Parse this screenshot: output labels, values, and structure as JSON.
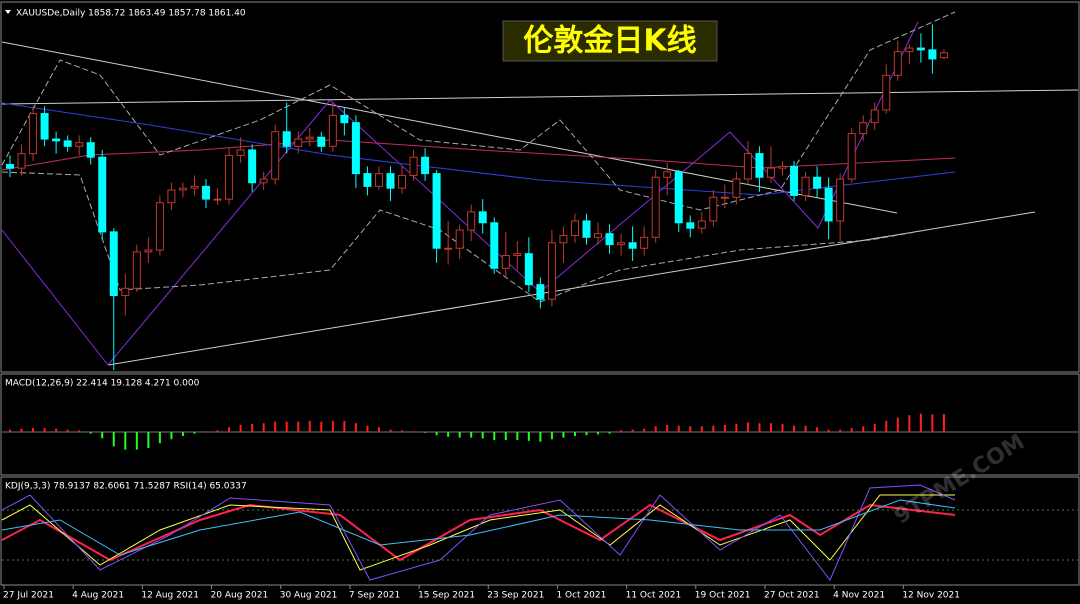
{
  "chart_data": [
    {
      "type": "candlestick",
      "title": "伦敦金日K线",
      "subtitle": "XAUUSDe,Daily  1858.72 1863.49 1857.78 1861.40",
      "up_color": "#c0392b",
      "down_color": "#00ffff",
      "categories": [
        "27 Jul 2021",
        null,
        null,
        null,
        null,
        null,
        "4 Aug 2021",
        null,
        null,
        null,
        null,
        null,
        "12 Aug 2021",
        null,
        null,
        null,
        null,
        null,
        "20 Aug 2021",
        null,
        null,
        null,
        null,
        null,
        "30 Aug 2021",
        null,
        null,
        null,
        null,
        null,
        "7 Sep 2021",
        null,
        null,
        null,
        null,
        null,
        "15 Sep 2021",
        null,
        null,
        null,
        null,
        null,
        "23 Sep 2021",
        null,
        null,
        null,
        null,
        null,
        "1 Oct 2021",
        null,
        null,
        null,
        null,
        null,
        "11 Oct 2021",
        null,
        null,
        null,
        null,
        null,
        "19 Oct 2021",
        null,
        null,
        null,
        null,
        null,
        "27 Oct 2021",
        null,
        null,
        null,
        null,
        null,
        "4 Nov 2021",
        null,
        null,
        null,
        null,
        null,
        "12 Nov 2021",
        null,
        null,
        null
      ],
      "open": [
        1800,
        1798,
        1806,
        1828,
        1814,
        1813,
        1810,
        1812,
        1804,
        1763,
        1728,
        1732,
        1752,
        1753,
        1779,
        1786,
        1787,
        1788,
        1781,
        1781,
        1805,
        1808,
        1790,
        1792,
        1818,
        1810,
        1814,
        1815,
        1810,
        1827,
        1823,
        1795,
        1788,
        1795,
        1787,
        1794,
        1804,
        1795,
        1754,
        1754,
        1764,
        1774,
        1768,
        1743,
        1750,
        1751,
        1734,
        1726,
        1757,
        1761,
        1769,
        1760,
        1762,
        1756,
        1757,
        1754,
        1760,
        1793,
        1796,
        1768,
        1765,
        1769,
        1782,
        1782,
        1792,
        1806,
        1793,
        1798,
        1799,
        1783,
        1793,
        1787,
        1769,
        1792,
        1817,
        1823,
        1830,
        1849,
        1862,
        1864,
        1863,
        1858.72
      ],
      "high": [
        1805,
        1811,
        1832,
        1832,
        1818,
        1816,
        1816,
        1815,
        1808,
        1765,
        1740,
        1756,
        1760,
        1783,
        1790,
        1790,
        1794,
        1792,
        1787,
        1809,
        1815,
        1811,
        1796,
        1822,
        1834,
        1818,
        1820,
        1818,
        1834,
        1831,
        1827,
        1799,
        1799,
        1799,
        1799,
        1808,
        1809,
        1797,
        1769,
        1767,
        1778,
        1781,
        1771,
        1763,
        1758,
        1760,
        1738,
        1764,
        1766,
        1773,
        1773,
        1768,
        1767,
        1762,
        1766,
        1766,
        1797,
        1801,
        1797,
        1772,
        1774,
        1786,
        1789,
        1796,
        1813,
        1810,
        1810,
        1802,
        1802,
        1796,
        1799,
        1793,
        1795,
        1820,
        1827,
        1834,
        1855,
        1868,
        1866,
        1872,
        1877,
        1863.49
      ],
      "low": [
        1793,
        1794,
        1802,
        1810,
        1806,
        1807,
        1805,
        1800,
        1759,
        1687,
        1717,
        1730,
        1746,
        1750,
        1775,
        1782,
        1783,
        1776,
        1778,
        1778,
        1801,
        1785,
        1786,
        1789,
        1806,
        1806,
        1810,
        1807,
        1807,
        1816,
        1787,
        1783,
        1786,
        1780,
        1784,
        1791,
        1791,
        1746,
        1745,
        1748,
        1758,
        1762,
        1740,
        1738,
        1742,
        1730,
        1721,
        1722,
        1746,
        1757,
        1756,
        1756,
        1751,
        1750,
        1747,
        1750,
        1757,
        1783,
        1763,
        1760,
        1762,
        1766,
        1776,
        1778,
        1789,
        1785,
        1790,
        1794,
        1780,
        1780,
        1782,
        1759,
        1758,
        1790,
        1813,
        1819,
        1828,
        1846,
        1855,
        1856,
        1850,
        1857.78
      ],
      "close": [
        1798,
        1806,
        1828,
        1814,
        1813,
        1810,
        1812,
        1804,
        1763,
        1728,
        1732,
        1752,
        1753,
        1779,
        1786,
        1787,
        1788,
        1781,
        1781,
        1805,
        1808,
        1790,
        1792,
        1818,
        1810,
        1814,
        1815,
        1810,
        1827,
        1823,
        1795,
        1788,
        1795,
        1787,
        1794,
        1804,
        1795,
        1754,
        1754,
        1764,
        1774,
        1768,
        1743,
        1750,
        1751,
        1734,
        1726,
        1757,
        1761,
        1769,
        1760,
        1762,
        1756,
        1757,
        1754,
        1760,
        1793,
        1796,
        1768,
        1765,
        1769,
        1782,
        1782,
        1792,
        1806,
        1793,
        1798,
        1799,
        1783,
        1793,
        1787,
        1769,
        1792,
        1817,
        1823,
        1830,
        1849,
        1862,
        1864,
        1863,
        1858,
        1861.4
      ],
      "ylim": [
        1686,
        1886
      ]
    },
    {
      "type": "bar",
      "title": "MACD(12,26,9) 22.414 19.128 4.271 0.000",
      "up_color": "#ff2020",
      "down_color": "#20ff20",
      "values": [
        3,
        4,
        5,
        5,
        4,
        3,
        2,
        -2,
        -8,
        -18,
        -22,
        -22,
        -20,
        -14,
        -9,
        -5,
        -2,
        1,
        2,
        6,
        9,
        10,
        11,
        13,
        13,
        13,
        14,
        13,
        14,
        14,
        11,
        8,
        6,
        3,
        2,
        1,
        -1,
        -4,
        -6,
        -7,
        -7,
        -8,
        -10,
        -10,
        -10,
        -11,
        -12,
        -9,
        -7,
        -5,
        -4,
        -3,
        -2,
        2,
        3,
        4,
        7,
        9,
        8,
        7,
        7,
        8,
        9,
        10,
        12,
        11,
        11,
        10,
        8,
        8,
        6,
        3,
        3,
        5,
        7,
        10,
        14,
        18,
        21,
        23,
        22,
        22.414
      ],
      "ylim": [
        -50,
        65
      ]
    }
  ],
  "kdj_label": "KDJ(9,3,3) 78.9137 82.6061 71.5287  RSI(14) 65.0337",
  "watermark": "9TPME.COM"
}
